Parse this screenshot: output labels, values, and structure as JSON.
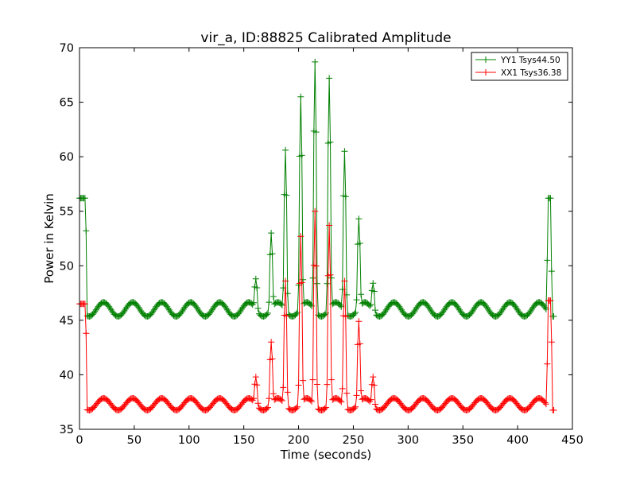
{
  "chart_data": {
    "type": "line",
    "title": "vir_a, ID:88825 Calibrated Amplitude",
    "xlabel": "Time (seconds)",
    "ylabel": "Power in Kelvin",
    "xlim": [
      0,
      450
    ],
    "ylim": [
      35,
      70
    ],
    "xticks": [
      0,
      50,
      100,
      150,
      200,
      250,
      300,
      350,
      400,
      450
    ],
    "yticks": [
      35,
      40,
      45,
      50,
      55,
      60,
      65,
      70
    ],
    "grid": false,
    "legend": "top-right",
    "marker": "+",
    "series": [
      {
        "name": "YY1 Tsys44.50",
        "color": "#008000",
        "sample_interval": 1.0,
        "x_range": [
          0,
          433
        ],
        "baseline": {
          "mean": 46.0,
          "amplitude": 0.65,
          "period": 26.5,
          "phase_t0": 22
        },
        "off_source": [
          {
            "from": 0,
            "to": 5,
            "level": 56.2
          },
          {
            "from": 428,
            "to": 430,
            "level": 56.2
          }
        ],
        "transition_points": [
          [
            6,
            53.2
          ],
          [
            427,
            50.5
          ],
          [
            431,
            49.5
          ]
        ],
        "peaks": [
          {
            "t": 161,
            "value": 48.8
          },
          {
            "t": 175,
            "value": 53.0
          },
          {
            "t": 188,
            "value": 60.6
          },
          {
            "t": 202,
            "value": 65.5
          },
          {
            "t": 215,
            "value": 68.7
          },
          {
            "t": 228,
            "value": 67.2
          },
          {
            "t": 242,
            "value": 60.5
          },
          {
            "t": 255,
            "value": 54.3
          },
          {
            "t": 268,
            "value": 48.4
          }
        ]
      },
      {
        "name": "XX1 Tsys36.38",
        "color": "#ff0000",
        "sample_interval": 1.0,
        "x_range": [
          0,
          433
        ],
        "baseline": {
          "mean": 37.3,
          "amplitude": 0.55,
          "period": 26.5,
          "phase_t0": 22
        },
        "off_source": [
          {
            "from": 0,
            "to": 5,
            "level": 46.5
          },
          {
            "from": 428,
            "to": 430,
            "level": 46.8
          }
        ],
        "transition_points": [
          [
            6,
            43.8
          ],
          [
            427,
            41.0
          ],
          [
            431,
            43.0
          ]
        ],
        "peaks": [
          {
            "t": 161,
            "value": 39.8
          },
          {
            "t": 175,
            "value": 43.0
          },
          {
            "t": 188,
            "value": 48.6
          },
          {
            "t": 202,
            "value": 52.7
          },
          {
            "t": 215,
            "value": 55.0
          },
          {
            "t": 228,
            "value": 53.7
          },
          {
            "t": 242,
            "value": 48.6
          },
          {
            "t": 255,
            "value": 44.9
          },
          {
            "t": 268,
            "value": 39.8
          }
        ]
      }
    ]
  }
}
